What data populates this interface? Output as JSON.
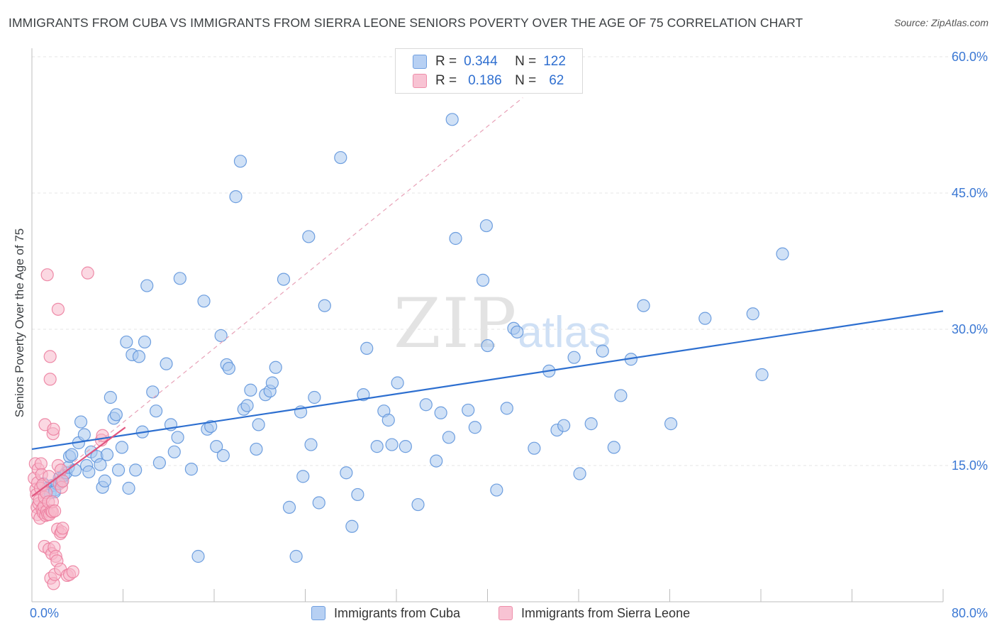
{
  "header": {
    "title": "IMMIGRANTS FROM CUBA VS IMMIGRANTS FROM SIERRA LEONE SENIORS POVERTY OVER THE AGE OF 75 CORRELATION CHART",
    "source": "Source: ZipAtlas.com"
  },
  "watermark": {
    "zip": "ZIP",
    "atlas": "atlas"
  },
  "legend": {
    "r_label": "R =",
    "n_label": "N =",
    "items": [
      {
        "r": "0.344",
        "n": "122"
      },
      {
        "r": "0.186",
        "n": "62"
      }
    ]
  },
  "colors": {
    "cuba_fill": "#a9c8ee",
    "cuba_stroke": "#5f95db",
    "cuba_line": "#2d6fd0",
    "sierra_fill": "#f7b8cb",
    "sierra_stroke": "#ec7fa0",
    "sierra_line": "#e2557f",
    "grid": "#e6e6e6",
    "tick_label": "#3b78d4"
  },
  "chart_data": {
    "type": "scatter",
    "title": "IMMIGRANTS FROM CUBA VS IMMIGRANTS FROM SIERRA LEONE SENIORS POVERTY OVER THE AGE OF 75 CORRELATION CHART",
    "xlabel": "",
    "ylabel": "Seniors Poverty Over the Age of 75",
    "xlim": [
      0,
      80
    ],
    "ylim": [
      0,
      60
    ],
    "x_tick_labels": [
      {
        "value": 0,
        "label": "0.0%"
      },
      {
        "value": 80,
        "label": "80.0%"
      }
    ],
    "y_tick_labels": [
      {
        "value": 15,
        "label": "15.0%"
      },
      {
        "value": 30,
        "label": "30.0%"
      },
      {
        "value": 45,
        "label": "45.0%"
      },
      {
        "value": 60,
        "label": "60.0%"
      }
    ],
    "series": [
      {
        "name": "Immigrants from Cuba",
        "trend": {
          "x0": 0,
          "y0": 16.8,
          "x1": 80,
          "y1": 32.0
        },
        "points": [
          [
            1.0,
            13.0
          ],
          [
            1.2,
            12.2
          ],
          [
            1.4,
            12.5
          ],
          [
            1.6,
            12.0
          ],
          [
            1.8,
            12.8
          ],
          [
            2.0,
            12.3
          ],
          [
            2.2,
            13.0
          ],
          [
            2.0,
            12.1
          ],
          [
            2.4,
            13.6
          ],
          [
            2.6,
            13.2
          ],
          [
            2.8,
            13.9
          ],
          [
            3.0,
            14.2
          ],
          [
            3.2,
            14.8
          ],
          [
            3.3,
            16.0
          ],
          [
            3.5,
            16.2
          ],
          [
            3.8,
            14.5
          ],
          [
            4.1,
            17.5
          ],
          [
            4.3,
            19.8
          ],
          [
            4.6,
            18.4
          ],
          [
            4.8,
            15.0
          ],
          [
            5.0,
            14.3
          ],
          [
            5.2,
            16.5
          ],
          [
            5.7,
            16.0
          ],
          [
            6.0,
            15.1
          ],
          [
            6.2,
            12.6
          ],
          [
            6.4,
            13.3
          ],
          [
            6.6,
            16.2
          ],
          [
            6.9,
            22.5
          ],
          [
            7.2,
            20.2
          ],
          [
            7.4,
            20.6
          ],
          [
            7.6,
            14.5
          ],
          [
            7.9,
            17.0
          ],
          [
            8.3,
            28.6
          ],
          [
            8.5,
            12.5
          ],
          [
            8.8,
            27.2
          ],
          [
            9.1,
            14.5
          ],
          [
            9.4,
            27.0
          ],
          [
            9.7,
            18.7
          ],
          [
            9.9,
            28.6
          ],
          [
            10.1,
            34.8
          ],
          [
            10.6,
            23.1
          ],
          [
            10.9,
            21.0
          ],
          [
            11.2,
            15.3
          ],
          [
            11.8,
            26.2
          ],
          [
            12.2,
            19.5
          ],
          [
            12.5,
            16.5
          ],
          [
            12.8,
            18.1
          ],
          [
            13.0,
            35.6
          ],
          [
            14.0,
            14.6
          ],
          [
            14.6,
            5.0
          ],
          [
            15.1,
            33.1
          ],
          [
            15.4,
            19.0
          ],
          [
            15.7,
            19.3
          ],
          [
            16.2,
            17.1
          ],
          [
            16.6,
            29.3
          ],
          [
            16.8,
            16.1
          ],
          [
            17.1,
            26.1
          ],
          [
            17.3,
            25.7
          ],
          [
            17.9,
            44.6
          ],
          [
            18.3,
            48.5
          ],
          [
            18.6,
            21.2
          ],
          [
            18.9,
            21.6
          ],
          [
            19.2,
            23.3
          ],
          [
            19.7,
            16.8
          ],
          [
            19.9,
            19.5
          ],
          [
            20.5,
            22.8
          ],
          [
            20.9,
            23.2
          ],
          [
            21.1,
            24.1
          ],
          [
            21.4,
            25.8
          ],
          [
            22.1,
            35.5
          ],
          [
            22.6,
            10.4
          ],
          [
            23.2,
            5.0
          ],
          [
            23.6,
            20.9
          ],
          [
            23.8,
            13.8
          ],
          [
            24.3,
            40.2
          ],
          [
            24.5,
            17.3
          ],
          [
            24.8,
            22.5
          ],
          [
            25.2,
            10.9
          ],
          [
            25.7,
            32.6
          ],
          [
            27.1,
            48.9
          ],
          [
            27.6,
            14.2
          ],
          [
            28.1,
            8.3
          ],
          [
            28.6,
            11.8
          ],
          [
            29.1,
            22.8
          ],
          [
            29.4,
            27.9
          ],
          [
            30.3,
            17.1
          ],
          [
            30.9,
            21.0
          ],
          [
            31.3,
            20.0
          ],
          [
            31.6,
            17.3
          ],
          [
            32.1,
            24.1
          ],
          [
            32.8,
            17.1
          ],
          [
            33.9,
            10.7
          ],
          [
            34.6,
            21.7
          ],
          [
            35.5,
            15.5
          ],
          [
            35.9,
            20.8
          ],
          [
            36.6,
            18.1
          ],
          [
            36.9,
            53.1
          ],
          [
            37.2,
            40.0
          ],
          [
            38.3,
            21.1
          ],
          [
            38.9,
            19.2
          ],
          [
            39.6,
            35.4
          ],
          [
            39.9,
            41.4
          ],
          [
            40.0,
            28.2
          ],
          [
            40.8,
            12.3
          ],
          [
            41.7,
            21.3
          ],
          [
            42.3,
            30.1
          ],
          [
            42.6,
            29.7
          ],
          [
            44.1,
            16.9
          ],
          [
            45.4,
            25.4
          ],
          [
            46.1,
            18.9
          ],
          [
            46.7,
            19.4
          ],
          [
            47.6,
            26.9
          ],
          [
            48.1,
            14.1
          ],
          [
            49.1,
            19.6
          ],
          [
            50.1,
            27.6
          ],
          [
            51.1,
            17.0
          ],
          [
            51.7,
            22.7
          ],
          [
            52.6,
            26.7
          ],
          [
            53.7,
            32.6
          ],
          [
            56.1,
            19.6
          ],
          [
            59.1,
            31.2
          ],
          [
            63.3,
            31.7
          ],
          [
            64.1,
            25.0
          ],
          [
            65.9,
            38.3
          ]
        ]
      },
      {
        "name": "Immigrants from Sierra Leone",
        "trend": {
          "x0": 0,
          "y0": 11.6,
          "x1": 8.2,
          "y1": 19.2
        },
        "trend_extended": {
          "x0": 0,
          "y0": 11.6,
          "x1": 43.1,
          "y1": 55.5
        },
        "points": [
          [
            0.2,
            13.6
          ],
          [
            0.3,
            15.2
          ],
          [
            0.35,
            12.4
          ],
          [
            0.4,
            11.8
          ],
          [
            0.45,
            10.4
          ],
          [
            0.5,
            9.6
          ],
          [
            0.5,
            13.1
          ],
          [
            0.55,
            14.6
          ],
          [
            0.6,
            10.8
          ],
          [
            0.65,
            11.2
          ],
          [
            0.7,
            9.2
          ],
          [
            0.75,
            12.5
          ],
          [
            0.8,
            15.2
          ],
          [
            0.85,
            14.0
          ],
          [
            0.9,
            10.2
          ],
          [
            0.95,
            12.9
          ],
          [
            1.0,
            9.8
          ],
          [
            1.05,
            10.5
          ],
          [
            1.1,
            6.1
          ],
          [
            1.1,
            11.5
          ],
          [
            1.15,
            19.5
          ],
          [
            1.2,
            9.5
          ],
          [
            1.25,
            12.0
          ],
          [
            1.3,
            10.0
          ],
          [
            1.35,
            36.0
          ],
          [
            1.4,
            9.6
          ],
          [
            1.45,
            11.0
          ],
          [
            1.5,
            5.8
          ],
          [
            1.5,
            13.8
          ],
          [
            1.55,
            9.6
          ],
          [
            1.6,
            27.0
          ],
          [
            1.6,
            24.5
          ],
          [
            1.65,
            2.6
          ],
          [
            1.7,
            10.0
          ],
          [
            1.75,
            5.3
          ],
          [
            1.8,
            9.9
          ],
          [
            1.8,
            11.0
          ],
          [
            1.85,
            18.5
          ],
          [
            1.9,
            2.0
          ],
          [
            1.9,
            19.0
          ],
          [
            1.95,
            6.0
          ],
          [
            2.0,
            10.0
          ],
          [
            2.0,
            3.0
          ],
          [
            2.1,
            5.0
          ],
          [
            2.2,
            4.5
          ],
          [
            2.25,
            8.0
          ],
          [
            2.3,
            15.0
          ],
          [
            2.3,
            32.2
          ],
          [
            2.4,
            13.0
          ],
          [
            2.5,
            3.6
          ],
          [
            2.5,
            7.5
          ],
          [
            2.55,
            14.5
          ],
          [
            2.6,
            7.7
          ],
          [
            2.6,
            12.6
          ],
          [
            2.7,
            8.1
          ],
          [
            2.7,
            13.3
          ],
          [
            3.1,
            2.9
          ],
          [
            3.3,
            3.0
          ],
          [
            3.6,
            3.3
          ],
          [
            4.9,
            36.2
          ],
          [
            6.1,
            17.8
          ],
          [
            6.2,
            18.3
          ]
        ]
      }
    ]
  },
  "bottom_legend": {
    "items": [
      {
        "label": "Immigrants from Cuba"
      },
      {
        "label": "Immigrants from Sierra Leone"
      }
    ]
  }
}
